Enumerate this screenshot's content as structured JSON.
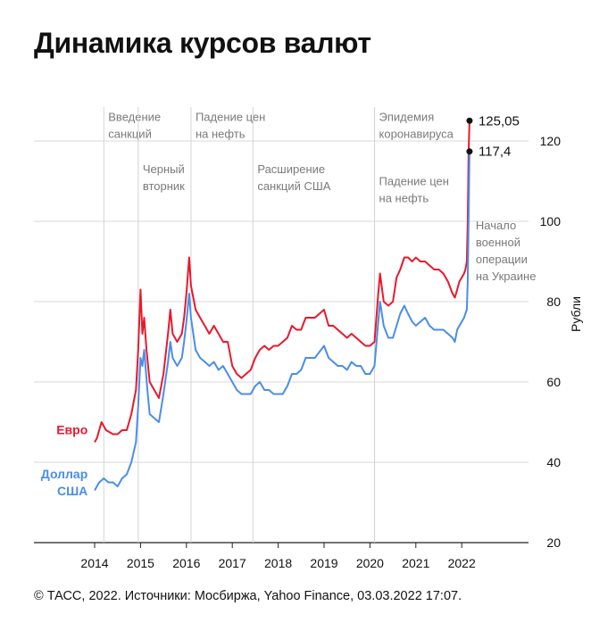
{
  "title": "Динамика курсов валют",
  "source": "© ТАСС, 2022. Источники: Мосбиржа, Yahoo Finance, 03.03.2022 17:07.",
  "chart_data": {
    "type": "line",
    "title": "Динамика курсов валют",
    "ylabel": "Рубли",
    "xlabel": "",
    "ylim": [
      20,
      130
    ],
    "xlim": [
      2013.6,
      2022.8
    ],
    "yticks": [
      20,
      40,
      60,
      80,
      100,
      120
    ],
    "xticks": [
      "2014",
      "2015",
      "2016",
      "2017",
      "2018",
      "2019",
      "2020",
      "2021",
      "2022"
    ],
    "grid": "horizontal",
    "series": [
      {
        "name": "Евро",
        "color": "#e8192c",
        "points": [
          [
            2014.0,
            45
          ],
          [
            2014.05,
            46
          ],
          [
            2014.1,
            48
          ],
          [
            2014.15,
            50
          ],
          [
            2014.25,
            48
          ],
          [
            2014.4,
            47
          ],
          [
            2014.5,
            47
          ],
          [
            2014.6,
            48
          ],
          [
            2014.7,
            48
          ],
          [
            2014.8,
            52
          ],
          [
            2014.9,
            58
          ],
          [
            2014.95,
            68
          ],
          [
            2015.0,
            83
          ],
          [
            2015.04,
            72
          ],
          [
            2015.08,
            76
          ],
          [
            2015.13,
            68
          ],
          [
            2015.2,
            60
          ],
          [
            2015.3,
            58
          ],
          [
            2015.4,
            56
          ],
          [
            2015.5,
            62
          ],
          [
            2015.6,
            72
          ],
          [
            2015.65,
            78
          ],
          [
            2015.7,
            72
          ],
          [
            2015.8,
            70
          ],
          [
            2015.9,
            72
          ],
          [
            2015.95,
            76
          ],
          [
            2016.0,
            82
          ],
          [
            2016.06,
            91
          ],
          [
            2016.1,
            84
          ],
          [
            2016.2,
            78
          ],
          [
            2016.3,
            76
          ],
          [
            2016.4,
            74
          ],
          [
            2016.5,
            72
          ],
          [
            2016.6,
            74
          ],
          [
            2016.7,
            72
          ],
          [
            2016.8,
            70
          ],
          [
            2016.9,
            70
          ],
          [
            2017.0,
            64
          ],
          [
            2017.1,
            62
          ],
          [
            2017.2,
            61
          ],
          [
            2017.3,
            62
          ],
          [
            2017.4,
            63
          ],
          [
            2017.5,
            66
          ],
          [
            2017.6,
            68
          ],
          [
            2017.7,
            69
          ],
          [
            2017.8,
            68
          ],
          [
            2017.9,
            69
          ],
          [
            2018.0,
            69
          ],
          [
            2018.2,
            71
          ],
          [
            2018.3,
            74
          ],
          [
            2018.4,
            73
          ],
          [
            2018.5,
            73
          ],
          [
            2018.6,
            76
          ],
          [
            2018.7,
            76
          ],
          [
            2018.8,
            76
          ],
          [
            2019.0,
            78
          ],
          [
            2019.1,
            74
          ],
          [
            2019.2,
            74
          ],
          [
            2019.3,
            73
          ],
          [
            2019.4,
            72
          ],
          [
            2019.5,
            71
          ],
          [
            2019.6,
            72
          ],
          [
            2019.7,
            71
          ],
          [
            2019.8,
            70
          ],
          [
            2019.9,
            69
          ],
          [
            2020.0,
            69
          ],
          [
            2020.1,
            70
          ],
          [
            2020.18,
            82
          ],
          [
            2020.22,
            87
          ],
          [
            2020.3,
            80
          ],
          [
            2020.4,
            79
          ],
          [
            2020.5,
            80
          ],
          [
            2020.58,
            86
          ],
          [
            2020.66,
            88
          ],
          [
            2020.75,
            91
          ],
          [
            2020.83,
            91
          ],
          [
            2020.92,
            90
          ],
          [
            2021.0,
            91
          ],
          [
            2021.1,
            90
          ],
          [
            2021.2,
            90
          ],
          [
            2021.3,
            89
          ],
          [
            2021.4,
            88
          ],
          [
            2021.5,
            88
          ],
          [
            2021.6,
            87
          ],
          [
            2021.7,
            85
          ],
          [
            2021.8,
            82
          ],
          [
            2021.85,
            81
          ],
          [
            2021.9,
            83
          ],
          [
            2021.95,
            85
          ],
          [
            2022.0,
            86
          ],
          [
            2022.05,
            87
          ],
          [
            2022.08,
            88
          ],
          [
            2022.11,
            90
          ],
          [
            2022.13,
            100
          ],
          [
            2022.15,
            117
          ],
          [
            2022.17,
            125.05
          ]
        ]
      },
      {
        "name": "Доллар США",
        "color": "#4a8ee8",
        "points": [
          [
            2014.0,
            33
          ],
          [
            2014.1,
            35
          ],
          [
            2014.2,
            36
          ],
          [
            2014.3,
            35
          ],
          [
            2014.4,
            35
          ],
          [
            2014.5,
            34
          ],
          [
            2014.6,
            36
          ],
          [
            2014.7,
            37
          ],
          [
            2014.8,
            40
          ],
          [
            2014.9,
            45
          ],
          [
            2014.95,
            54
          ],
          [
            2015.0,
            66
          ],
          [
            2015.04,
            64
          ],
          [
            2015.08,
            68
          ],
          [
            2015.15,
            58
          ],
          [
            2015.2,
            52
          ],
          [
            2015.3,
            51
          ],
          [
            2015.4,
            50
          ],
          [
            2015.5,
            57
          ],
          [
            2015.6,
            65
          ],
          [
            2015.65,
            70
          ],
          [
            2015.7,
            66
          ],
          [
            2015.8,
            64
          ],
          [
            2015.9,
            66
          ],
          [
            2015.95,
            70
          ],
          [
            2016.0,
            75
          ],
          [
            2016.06,
            82
          ],
          [
            2016.1,
            76
          ],
          [
            2016.2,
            68
          ],
          [
            2016.3,
            66
          ],
          [
            2016.4,
            65
          ],
          [
            2016.5,
            64
          ],
          [
            2016.6,
            65
          ],
          [
            2016.7,
            63
          ],
          [
            2016.8,
            64
          ],
          [
            2016.9,
            62
          ],
          [
            2017.0,
            60
          ],
          [
            2017.1,
            58
          ],
          [
            2017.2,
            57
          ],
          [
            2017.3,
            57
          ],
          [
            2017.4,
            57
          ],
          [
            2017.5,
            59
          ],
          [
            2017.6,
            60
          ],
          [
            2017.7,
            58
          ],
          [
            2017.8,
            58
          ],
          [
            2017.9,
            57
          ],
          [
            2018.0,
            57
          ],
          [
            2018.1,
            57
          ],
          [
            2018.2,
            59
          ],
          [
            2018.3,
            62
          ],
          [
            2018.4,
            62
          ],
          [
            2018.5,
            63
          ],
          [
            2018.6,
            66
          ],
          [
            2018.7,
            66
          ],
          [
            2018.8,
            66
          ],
          [
            2019.0,
            69
          ],
          [
            2019.1,
            66
          ],
          [
            2019.2,
            65
          ],
          [
            2019.3,
            64
          ],
          [
            2019.4,
            64
          ],
          [
            2019.5,
            63
          ],
          [
            2019.6,
            65
          ],
          [
            2019.7,
            64
          ],
          [
            2019.8,
            64
          ],
          [
            2019.9,
            62
          ],
          [
            2020.0,
            62
          ],
          [
            2020.1,
            64
          ],
          [
            2020.18,
            75
          ],
          [
            2020.22,
            80
          ],
          [
            2020.3,
            74
          ],
          [
            2020.4,
            71
          ],
          [
            2020.5,
            71
          ],
          [
            2020.58,
            74
          ],
          [
            2020.66,
            77
          ],
          [
            2020.75,
            79
          ],
          [
            2020.83,
            77
          ],
          [
            2020.92,
            75
          ],
          [
            2021.0,
            74
          ],
          [
            2021.1,
            75
          ],
          [
            2021.2,
            76
          ],
          [
            2021.3,
            74
          ],
          [
            2021.4,
            73
          ],
          [
            2021.5,
            73
          ],
          [
            2021.6,
            73
          ],
          [
            2021.7,
            72
          ],
          [
            2021.8,
            71
          ],
          [
            2021.85,
            70
          ],
          [
            2021.9,
            73
          ],
          [
            2021.95,
            74
          ],
          [
            2022.0,
            75
          ],
          [
            2022.05,
            76
          ],
          [
            2022.08,
            77
          ],
          [
            2022.11,
            78
          ],
          [
            2022.13,
            85
          ],
          [
            2022.15,
            100
          ],
          [
            2022.17,
            117.4
          ]
        ]
      }
    ],
    "series_labels": [
      {
        "series": 0,
        "lines": [
          "Евро"
        ],
        "x": 2013.85,
        "y": 47
      },
      {
        "series": 1,
        "lines": [
          "Доллар",
          "США"
        ],
        "x": 2013.85,
        "y": 36
      }
    ],
    "events": [
      {
        "x": 2014.2,
        "lines": [
          "Введение",
          "санкций"
        ],
        "label_y": 125
      },
      {
        "x": 2014.95,
        "lines": [
          "Черный",
          "вторник"
        ],
        "label_y": 112
      },
      {
        "x": 2016.1,
        "lines": [
          "Падение цен",
          "на нефть"
        ],
        "label_y": 125
      },
      {
        "x": 2017.45,
        "lines": [
          "Расширение",
          "санкций США"
        ],
        "label_y": 112
      },
      {
        "x": 2020.1,
        "lines": [
          "Эпидемия",
          "коронавируса"
        ],
        "label_y": 125
      },
      {
        "x": 2020.1,
        "lines": [
          "Падение цен",
          "на нефть"
        ],
        "label_y": 109
      },
      {
        "x": 2022.15,
        "lines": [
          "Начало",
          "военной",
          "операции",
          "на Украине"
        ],
        "label_y": 98
      }
    ],
    "endpoint_labels": [
      {
        "series": 0,
        "value": 125.05,
        "text": "125,05"
      },
      {
        "series": 1,
        "value": 117.4,
        "text": "117,4"
      }
    ]
  }
}
